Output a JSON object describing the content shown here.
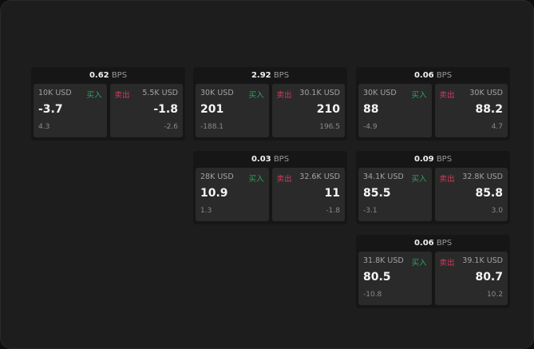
{
  "labels": {
    "buy": "买入",
    "sell": "卖出",
    "bps_unit": "BPS"
  },
  "colors": {
    "buy": "#27a85a",
    "sell": "#d8395e"
  },
  "cards": [
    {
      "row": 0,
      "col": 0,
      "spread": "0.62",
      "bid": {
        "amount": "10K USD",
        "price": "-3.7",
        "change": "4.3"
      },
      "ask": {
        "amount": "5.5K USD",
        "price": "-1.8",
        "change": "-2.6"
      }
    },
    {
      "row": 0,
      "col": 1,
      "spread": "2.92",
      "bid": {
        "amount": "30K USD",
        "price": "201",
        "change": "-188.1"
      },
      "ask": {
        "amount": "30.1K USD",
        "price": "210",
        "change": "196.5"
      }
    },
    {
      "row": 0,
      "col": 2,
      "spread": "0.06",
      "bid": {
        "amount": "30K USD",
        "price": "88",
        "change": "-4.9"
      },
      "ask": {
        "amount": "30K USD",
        "price": "88.2",
        "change": "4.7"
      }
    },
    {
      "row": 1,
      "col": 1,
      "spread": "0.03",
      "bid": {
        "amount": "28K USD",
        "price": "10.9",
        "change": "1.3"
      },
      "ask": {
        "amount": "32.6K USD",
        "price": "11",
        "change": "-1.8"
      }
    },
    {
      "row": 1,
      "col": 2,
      "spread": "0.09",
      "bid": {
        "amount": "34.1K USD",
        "price": "85.5",
        "change": "-3.1"
      },
      "ask": {
        "amount": "32.8K USD",
        "price": "85.8",
        "change": "3.0"
      }
    },
    {
      "row": 2,
      "col": 2,
      "spread": "0.06",
      "bid": {
        "amount": "31.8K USD",
        "price": "80.5",
        "change": "-10.8"
      },
      "ask": {
        "amount": "39.1K USD",
        "price": "80.7",
        "change": "10.2"
      }
    }
  ]
}
